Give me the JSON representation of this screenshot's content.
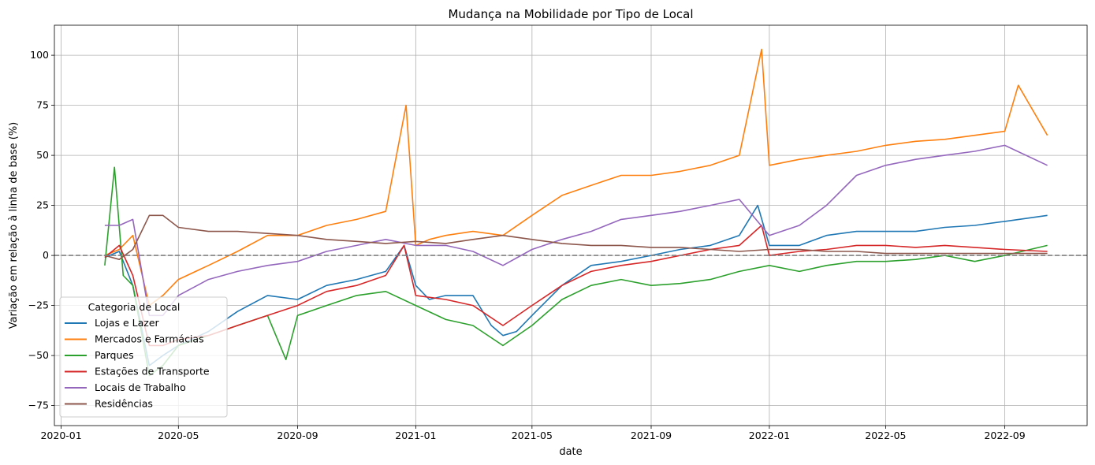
{
  "chart_data": {
    "type": "line",
    "title": "Mudança na Mobilidade por Tipo de Local",
    "xlabel": "date",
    "ylabel": "Variação em relação à linha de base (%)",
    "x_range": [
      "2019-12-25",
      "2022-11-25"
    ],
    "ylim": [
      -85,
      115
    ],
    "x_ticks": [
      "2020-01",
      "2020-05",
      "2020-09",
      "2021-01",
      "2021-05",
      "2021-09",
      "2022-01",
      "2022-05",
      "2022-09"
    ],
    "y_ticks": [
      -75,
      -50,
      -25,
      0,
      25,
      50,
      75,
      100
    ],
    "grid": true,
    "reference_line": {
      "y": 0,
      "style": "dashed",
      "color": "#808080"
    },
    "legend": {
      "title": "Categoria de Local",
      "placement": "lower-left"
    },
    "series": [
      {
        "name": "Lojas e Lazer",
        "color": "#1f77b4",
        "points": [
          [
            "2020-02-15",
            -1
          ],
          [
            "2020-03-01",
            2
          ],
          [
            "2020-03-15",
            -15
          ],
          [
            "2020-04-01",
            -55
          ],
          [
            "2020-04-15",
            -50
          ],
          [
            "2020-05-01",
            -45
          ],
          [
            "2020-06-01",
            -38
          ],
          [
            "2020-07-01",
            -28
          ],
          [
            "2020-08-01",
            -20
          ],
          [
            "2020-09-01",
            -22
          ],
          [
            "2020-10-01",
            -15
          ],
          [
            "2020-11-01",
            -12
          ],
          [
            "2020-12-01",
            -8
          ],
          [
            "2020-12-20",
            5
          ],
          [
            "2021-01-01",
            -15
          ],
          [
            "2021-01-15",
            -22
          ],
          [
            "2021-02-01",
            -20
          ],
          [
            "2021-03-01",
            -20
          ],
          [
            "2021-03-20",
            -35
          ],
          [
            "2021-04-01",
            -40
          ],
          [
            "2021-04-15",
            -38
          ],
          [
            "2021-05-01",
            -30
          ],
          [
            "2021-06-01",
            -15
          ],
          [
            "2021-07-01",
            -5
          ],
          [
            "2021-08-01",
            -3
          ],
          [
            "2021-09-01",
            0
          ],
          [
            "2021-10-01",
            3
          ],
          [
            "2021-11-01",
            5
          ],
          [
            "2021-12-01",
            10
          ],
          [
            "2021-12-20",
            25
          ],
          [
            "2022-01-01",
            5
          ],
          [
            "2022-02-01",
            5
          ],
          [
            "2022-03-01",
            10
          ],
          [
            "2022-04-01",
            12
          ],
          [
            "2022-05-01",
            12
          ],
          [
            "2022-06-01",
            12
          ],
          [
            "2022-07-01",
            14
          ],
          [
            "2022-08-01",
            15
          ],
          [
            "2022-09-01",
            17
          ],
          [
            "2022-10-15",
            20
          ]
        ]
      },
      {
        "name": "Mercados e Farmácias",
        "color": "#ff7f0e",
        "points": [
          [
            "2020-02-15",
            0
          ],
          [
            "2020-03-01",
            3
          ],
          [
            "2020-03-15",
            10
          ],
          [
            "2020-04-01",
            -25
          ],
          [
            "2020-04-15",
            -20
          ],
          [
            "2020-05-01",
            -12
          ],
          [
            "2020-06-01",
            -5
          ],
          [
            "2020-07-01",
            2
          ],
          [
            "2020-08-01",
            10
          ],
          [
            "2020-09-01",
            10
          ],
          [
            "2020-10-01",
            15
          ],
          [
            "2020-11-01",
            18
          ],
          [
            "2020-12-01",
            22
          ],
          [
            "2020-12-22",
            75
          ],
          [
            "2021-01-01",
            5
          ],
          [
            "2021-01-15",
            8
          ],
          [
            "2021-02-01",
            10
          ],
          [
            "2021-03-01",
            12
          ],
          [
            "2021-04-01",
            10
          ],
          [
            "2021-05-01",
            20
          ],
          [
            "2021-06-01",
            30
          ],
          [
            "2021-07-01",
            35
          ],
          [
            "2021-08-01",
            40
          ],
          [
            "2021-09-01",
            40
          ],
          [
            "2021-10-01",
            42
          ],
          [
            "2021-11-01",
            45
          ],
          [
            "2021-12-01",
            50
          ],
          [
            "2021-12-24",
            103
          ],
          [
            "2022-01-01",
            45
          ],
          [
            "2022-02-01",
            48
          ],
          [
            "2022-03-01",
            50
          ],
          [
            "2022-04-01",
            52
          ],
          [
            "2022-05-01",
            55
          ],
          [
            "2022-06-01",
            57
          ],
          [
            "2022-07-01",
            58
          ],
          [
            "2022-08-01",
            60
          ],
          [
            "2022-09-01",
            62
          ],
          [
            "2022-09-15",
            85
          ],
          [
            "2022-10-15",
            60
          ]
        ]
      },
      {
        "name": "Parques",
        "color": "#2ca02c",
        "points": [
          [
            "2020-02-15",
            -5
          ],
          [
            "2020-02-25",
            44
          ],
          [
            "2020-03-05",
            -10
          ],
          [
            "2020-03-15",
            -15
          ],
          [
            "2020-04-01",
            -60
          ],
          [
            "2020-04-15",
            -55
          ],
          [
            "2020-05-01",
            -45
          ],
          [
            "2020-06-01",
            -40
          ],
          [
            "2020-07-01",
            -35
          ],
          [
            "2020-08-01",
            -30
          ],
          [
            "2020-08-20",
            -52
          ],
          [
            "2020-09-01",
            -30
          ],
          [
            "2020-10-01",
            -25
          ],
          [
            "2020-11-01",
            -20
          ],
          [
            "2020-12-01",
            -18
          ],
          [
            "2021-01-01",
            -25
          ],
          [
            "2021-02-01",
            -32
          ],
          [
            "2021-03-01",
            -35
          ],
          [
            "2021-04-01",
            -45
          ],
          [
            "2021-05-01",
            -35
          ],
          [
            "2021-06-01",
            -22
          ],
          [
            "2021-07-01",
            -15
          ],
          [
            "2021-08-01",
            -12
          ],
          [
            "2021-09-01",
            -15
          ],
          [
            "2021-10-01",
            -14
          ],
          [
            "2021-11-01",
            -12
          ],
          [
            "2021-12-01",
            -8
          ],
          [
            "2022-01-01",
            -5
          ],
          [
            "2022-02-01",
            -8
          ],
          [
            "2022-03-01",
            -5
          ],
          [
            "2022-04-01",
            -3
          ],
          [
            "2022-05-01",
            -3
          ],
          [
            "2022-06-01",
            -2
          ],
          [
            "2022-07-01",
            0
          ],
          [
            "2022-08-01",
            -3
          ],
          [
            "2022-09-01",
            0
          ],
          [
            "2022-10-15",
            5
          ]
        ]
      },
      {
        "name": "Estações de Transporte",
        "color": "#d62728",
        "points": [
          [
            "2020-02-15",
            -1
          ],
          [
            "2020-03-01",
            5
          ],
          [
            "2020-03-15",
            -10
          ],
          [
            "2020-04-01",
            -45
          ],
          [
            "2020-04-15",
            -45
          ],
          [
            "2020-05-01",
            -42
          ],
          [
            "2020-06-01",
            -40
          ],
          [
            "2020-07-01",
            -35
          ],
          [
            "2020-08-01",
            -30
          ],
          [
            "2020-09-01",
            -25
          ],
          [
            "2020-10-01",
            -18
          ],
          [
            "2020-11-01",
            -15
          ],
          [
            "2020-12-01",
            -10
          ],
          [
            "2020-12-20",
            5
          ],
          [
            "2021-01-01",
            -20
          ],
          [
            "2021-02-01",
            -22
          ],
          [
            "2021-03-01",
            -25
          ],
          [
            "2021-04-01",
            -35
          ],
          [
            "2021-05-01",
            -25
          ],
          [
            "2021-06-01",
            -15
          ],
          [
            "2021-07-01",
            -8
          ],
          [
            "2021-08-01",
            -5
          ],
          [
            "2021-09-01",
            -3
          ],
          [
            "2021-10-01",
            0
          ],
          [
            "2021-11-01",
            3
          ],
          [
            "2021-12-01",
            5
          ],
          [
            "2021-12-24",
            15
          ],
          [
            "2022-01-01",
            0
          ],
          [
            "2022-02-01",
            2
          ],
          [
            "2022-03-01",
            3
          ],
          [
            "2022-04-01",
            5
          ],
          [
            "2022-05-01",
            5
          ],
          [
            "2022-06-01",
            4
          ],
          [
            "2022-07-01",
            5
          ],
          [
            "2022-08-01",
            4
          ],
          [
            "2022-09-01",
            3
          ],
          [
            "2022-10-15",
            2
          ]
        ]
      },
      {
        "name": "Locais de Trabalho",
        "color": "#9467bd",
        "points": [
          [
            "2020-02-15",
            15
          ],
          [
            "2020-03-01",
            15
          ],
          [
            "2020-03-15",
            18
          ],
          [
            "2020-04-01",
            -30
          ],
          [
            "2020-04-15",
            -30
          ],
          [
            "2020-05-01",
            -20
          ],
          [
            "2020-06-01",
            -12
          ],
          [
            "2020-07-01",
            -8
          ],
          [
            "2020-08-01",
            -5
          ],
          [
            "2020-09-01",
            -3
          ],
          [
            "2020-10-01",
            2
          ],
          [
            "2020-11-01",
            5
          ],
          [
            "2020-12-01",
            8
          ],
          [
            "2021-01-01",
            5
          ],
          [
            "2021-02-01",
            5
          ],
          [
            "2021-03-01",
            2
          ],
          [
            "2021-04-01",
            -5
          ],
          [
            "2021-05-01",
            3
          ],
          [
            "2021-06-01",
            8
          ],
          [
            "2021-07-01",
            12
          ],
          [
            "2021-08-01",
            18
          ],
          [
            "2021-09-01",
            20
          ],
          [
            "2021-10-01",
            22
          ],
          [
            "2021-11-01",
            25
          ],
          [
            "2021-12-01",
            28
          ],
          [
            "2022-01-01",
            10
          ],
          [
            "2022-02-01",
            15
          ],
          [
            "2022-03-01",
            25
          ],
          [
            "2022-04-01",
            40
          ],
          [
            "2022-05-01",
            45
          ],
          [
            "2022-06-01",
            48
          ],
          [
            "2022-07-01",
            50
          ],
          [
            "2022-08-01",
            52
          ],
          [
            "2022-09-01",
            55
          ],
          [
            "2022-10-15",
            45
          ]
        ]
      },
      {
        "name": "Residências",
        "color": "#8c564b",
        "points": [
          [
            "2020-02-15",
            0
          ],
          [
            "2020-03-01",
            -2
          ],
          [
            "2020-03-15",
            3
          ],
          [
            "2020-04-01",
            20
          ],
          [
            "2020-04-15",
            20
          ],
          [
            "2020-05-01",
            14
          ],
          [
            "2020-06-01",
            12
          ],
          [
            "2020-07-01",
            12
          ],
          [
            "2020-08-01",
            11
          ],
          [
            "2020-09-01",
            10
          ],
          [
            "2020-10-01",
            8
          ],
          [
            "2020-11-01",
            7
          ],
          [
            "2020-12-01",
            6
          ],
          [
            "2021-01-01",
            7
          ],
          [
            "2021-02-01",
            6
          ],
          [
            "2021-03-01",
            8
          ],
          [
            "2021-04-01",
            10
          ],
          [
            "2021-05-01",
            8
          ],
          [
            "2021-06-01",
            6
          ],
          [
            "2021-07-01",
            5
          ],
          [
            "2021-08-01",
            5
          ],
          [
            "2021-09-01",
            4
          ],
          [
            "2021-10-01",
            4
          ],
          [
            "2021-11-01",
            3
          ],
          [
            "2021-12-01",
            2
          ],
          [
            "2022-01-01",
            3
          ],
          [
            "2022-02-01",
            3
          ],
          [
            "2022-03-01",
            2
          ],
          [
            "2022-04-01",
            2
          ],
          [
            "2022-05-01",
            1
          ],
          [
            "2022-06-01",
            1
          ],
          [
            "2022-07-01",
            1
          ],
          [
            "2022-08-01",
            1
          ],
          [
            "2022-09-01",
            1
          ],
          [
            "2022-10-15",
            1
          ]
        ]
      }
    ]
  }
}
